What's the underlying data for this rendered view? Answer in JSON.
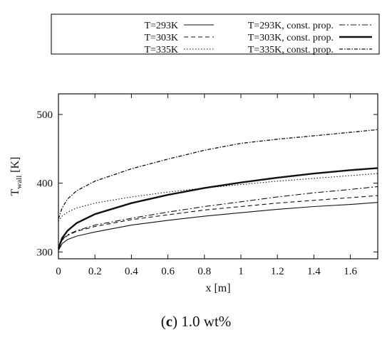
{
  "chart_data": {
    "type": "line",
    "xlabel": "x [m]",
    "ylabel_main": "T",
    "ylabel_sub": "wall",
    "ylabel_unit": " [K]",
    "xlim": [
      0,
      1.75
    ],
    "ylim": [
      290,
      530
    ],
    "xticks": [
      0,
      0.2,
      0.4,
      0.6,
      0.8,
      1,
      1.2,
      1.4,
      1.6
    ],
    "xtick_labels": [
      "0",
      "0.2",
      "0.4",
      "0.6",
      "0.8",
      "1",
      "1.2",
      "1.4",
      "1.6"
    ],
    "yticks": [
      300,
      400,
      500
    ],
    "ytick_labels": [
      "300",
      "400",
      "500"
    ],
    "grid": false,
    "legend_position": "top",
    "series": [
      {
        "name": "T=293K",
        "style": "solid-thin",
        "x": [
          0,
          0.02,
          0.05,
          0.1,
          0.2,
          0.4,
          0.6,
          0.8,
          1.0,
          1.2,
          1.4,
          1.6,
          1.75
        ],
        "y": [
          302,
          312,
          318,
          323,
          329,
          339,
          346,
          352,
          357,
          362,
          366,
          369,
          372
        ]
      },
      {
        "name": "T=303K",
        "style": "dashed",
        "x": [
          0,
          0.02,
          0.05,
          0.1,
          0.2,
          0.4,
          0.6,
          0.8,
          1.0,
          1.2,
          1.4,
          1.6,
          1.75
        ],
        "y": [
          305,
          317,
          324,
          330,
          337,
          347,
          354,
          361,
          366,
          371,
          375,
          379,
          382
        ]
      },
      {
        "name": "T=335K",
        "style": "dotted",
        "x": [
          0,
          0.02,
          0.05,
          0.1,
          0.2,
          0.4,
          0.6,
          0.8,
          1.0,
          1.2,
          1.4,
          1.6,
          1.75
        ],
        "y": [
          345,
          352,
          358,
          364,
          371,
          380,
          387,
          393,
          398,
          403,
          407,
          411,
          414
        ]
      },
      {
        "name": "T=293K, const. prop.",
        "style": "dashdot",
        "x": [
          0,
          0.02,
          0.05,
          0.1,
          0.2,
          0.4,
          0.6,
          0.8,
          1.0,
          1.2,
          1.4,
          1.6,
          1.75
        ],
        "y": [
          302,
          318,
          325,
          331,
          339,
          349,
          358,
          366,
          373,
          380,
          386,
          391,
          395
        ]
      },
      {
        "name": "T=303K, const. prop.",
        "style": "solid-thick",
        "x": [
          0,
          0.02,
          0.05,
          0.1,
          0.2,
          0.4,
          0.6,
          0.8,
          1.0,
          1.2,
          1.4,
          1.6,
          1.75
        ],
        "y": [
          305,
          320,
          331,
          342,
          355,
          371,
          383,
          393,
          401,
          408,
          414,
          419,
          422
        ]
      },
      {
        "name": "T=335K, const. prop.",
        "style": "dashdot-dense",
        "x": [
          0,
          0.02,
          0.05,
          0.1,
          0.2,
          0.4,
          0.6,
          0.8,
          1.0,
          1.2,
          1.4,
          1.6,
          1.75
        ],
        "y": [
          348,
          364,
          377,
          389,
          403,
          421,
          435,
          448,
          458,
          464,
          469,
          474,
          478
        ]
      }
    ]
  },
  "caption": {
    "label": "(c)",
    "letter": "c",
    "text": "1.0 wt%"
  }
}
